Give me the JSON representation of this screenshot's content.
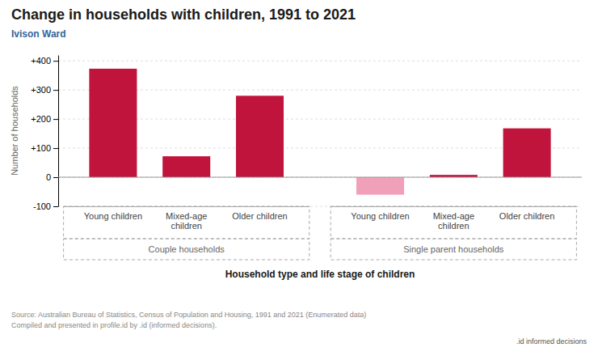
{
  "chart_data": {
    "type": "bar",
    "title": "Change in households with children, 1991 to 2021",
    "subtitle": "Ivison Ward",
    "xlabel": "Household type and life stage of children",
    "ylabel": "Number of households",
    "categories": [
      "Young children",
      "Mixed-age\nchildren",
      "Older children",
      "Young children",
      "Mixed-age\nchildren",
      "Older children"
    ],
    "values": [
      373,
      72,
      280,
      -60,
      8,
      168
    ],
    "colors": [
      "#c0143c",
      "#c0143c",
      "#c0143c",
      "#f0a0b8",
      "#c0143c",
      "#c0143c"
    ],
    "group_labels": [
      "Couple households",
      "Single parent households"
    ],
    "group_sizes": [
      3,
      3
    ],
    "ylim": [
      -100,
      420
    ],
    "yticks": [
      -100,
      0,
      {
        "value": 100,
        "label": "+100"
      },
      {
        "value": 200,
        "label": "+200"
      },
      {
        "value": 300,
        "label": "+300"
      },
      {
        "value": 400,
        "label": "+400"
      }
    ],
    "grid": true,
    "source": [
      "Source: Australian Bureau of Statistics, Census of Population and Housing, 1991 and 2021 (Enumerated data)",
      "Compiled and presented in profile.id by .id (informed decisions)."
    ],
    "annotations": [
      ".id informed decisions"
    ]
  }
}
